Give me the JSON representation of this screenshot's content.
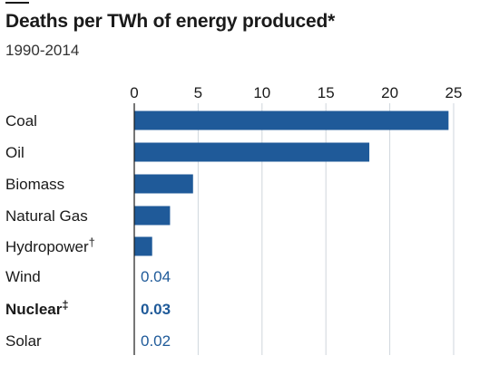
{
  "header": {
    "title": "Deaths per TWh of energy produced*",
    "subtitle": "1990-2014"
  },
  "colors": {
    "bar": "#1f5a99",
    "value_text": "#1f5a99",
    "axis": "#1a1a1a",
    "grid": "#cfd6dc"
  },
  "chart_data": {
    "type": "bar",
    "orientation": "horizontal",
    "title": "Deaths per TWh of energy produced*",
    "subtitle": "1990-2014",
    "xlabel": "",
    "ylabel": "",
    "xlim": [
      0,
      25
    ],
    "xticks": [
      0,
      5,
      10,
      15,
      20,
      25
    ],
    "grid": true,
    "categories": [
      "Coal",
      "Oil",
      "Biomass",
      "Natural Gas",
      "Hydropower",
      "Wind",
      "Nuclear",
      "Solar"
    ],
    "markers": [
      "",
      "",
      "",
      "",
      "†",
      "",
      "‡",
      ""
    ],
    "values": [
      24.6,
      18.4,
      4.6,
      2.8,
      1.4,
      0.04,
      0.03,
      0.02
    ],
    "data_labels": [
      "",
      "",
      "",
      "",
      "",
      "0.04",
      "0.03",
      "0.02"
    ],
    "highlight": [
      "Nuclear"
    ]
  }
}
